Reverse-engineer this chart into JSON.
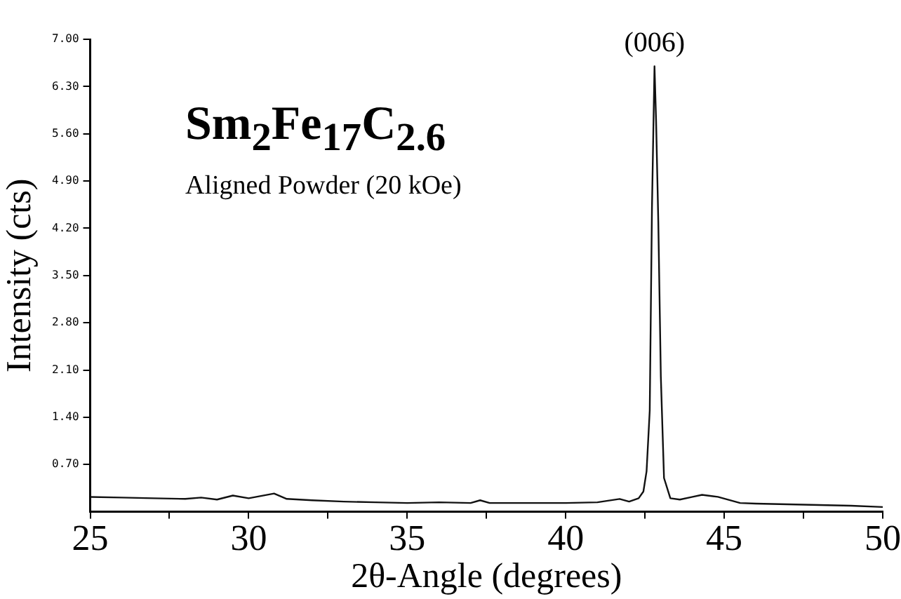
{
  "chart_data": {
    "type": "line",
    "title": "Sm$_{2}$Fe$_{17}$C$_{2.6}$",
    "subtitle": "Aligned Powder (20 kOe)",
    "xlabel": "2θ-Angle (degrees)",
    "ylabel": "Intensity (cts)",
    "annotations": [
      {
        "text": "(006)",
        "x": 42.8,
        "y": 6.6
      }
    ],
    "x": [
      25,
      26,
      27,
      28,
      28.5,
      29,
      29.5,
      30,
      30.8,
      31.2,
      32,
      33,
      34,
      35,
      36,
      37,
      37.3,
      37.6,
      38,
      39,
      40,
      41,
      41.7,
      42,
      42.3,
      42.45,
      42.55,
      42.65,
      42.72,
      42.8,
      42.85,
      42.92,
      43.0,
      43.1,
      43.3,
      43.6,
      44,
      44.3,
      44.8,
      45.5,
      46,
      47,
      48,
      49,
      50
    ],
    "series": [
      {
        "color": "#111111",
        "values": [
          0.22,
          0.21,
          0.2,
          0.19,
          0.21,
          0.18,
          0.24,
          0.2,
          0.27,
          0.19,
          0.17,
          0.15,
          0.14,
          0.13,
          0.14,
          0.13,
          0.17,
          0.13,
          0.13,
          0.13,
          0.13,
          0.14,
          0.19,
          0.15,
          0.2,
          0.3,
          0.6,
          1.5,
          4.5,
          6.6,
          5.8,
          4.3,
          2.0,
          0.5,
          0.2,
          0.18,
          0.22,
          0.25,
          0.22,
          0.13,
          0.12,
          0.11,
          0.1,
          0.09,
          0.07
        ]
      }
    ],
    "xlim": [
      25,
      50
    ],
    "xticks": [
      25,
      {
        "value": 27.5,
        "label": null
      },
      30,
      {
        "value": 32.5,
        "label": null
      },
      35,
      {
        "value": 37.5,
        "label": null
      },
      40,
      {
        "value": 42.5,
        "label": null
      },
      45,
      {
        "value": 47.5,
        "label": null
      },
      50
    ],
    "ylim": [
      0,
      7
    ],
    "yticks": [
      {
        "value": 0.7,
        "label": "0.70"
      },
      {
        "value": 1.4,
        "label": "1.40"
      },
      {
        "value": 2.1,
        "label": "2.10"
      },
      {
        "value": 2.8,
        "label": "2.80"
      },
      {
        "value": 3.5,
        "label": "3.50"
      },
      {
        "value": 4.2,
        "label": "4.20"
      },
      {
        "value": 4.9,
        "label": "4.90"
      },
      {
        "value": 5.6,
        "label": "5.60"
      },
      {
        "value": 6.3,
        "label": "6.30"
      },
      {
        "value": 7,
        "label": "7.00"
      }
    ],
    "grid": false,
    "legend": false,
    "marker": "none",
    "line_style": "solid"
  }
}
